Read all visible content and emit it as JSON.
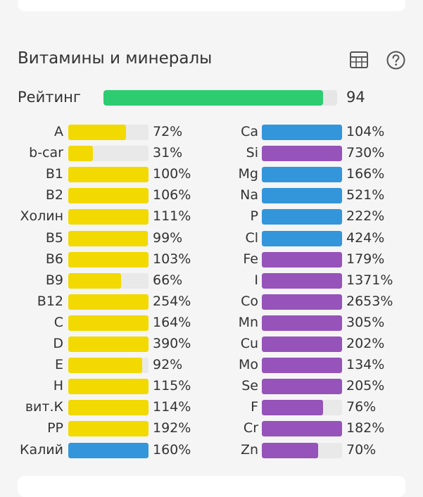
{
  "section": {
    "title": "Витамины и минералы"
  },
  "icons": {
    "table": "table-icon",
    "help": "help-circle-icon"
  },
  "colors": {
    "vitamin": "#f2d900",
    "blue": "#3396db",
    "purple": "#9653b9",
    "rating": "#2ecc71",
    "track": "#e9e9e9"
  },
  "rating": {
    "label": "Рейтинг",
    "value": "94",
    "fraction": 0.94
  },
  "left": [
    {
      "label": "A",
      "value": "72%",
      "fill": 0.72,
      "color": "vitamin"
    },
    {
      "label": "b-car",
      "value": "31%",
      "fill": 0.31,
      "color": "vitamin"
    },
    {
      "label": "B1",
      "value": "100%",
      "fill": 1.0,
      "color": "vitamin"
    },
    {
      "label": "B2",
      "value": "106%",
      "fill": 1.0,
      "color": "vitamin"
    },
    {
      "label": "Холин",
      "value": "111%",
      "fill": 1.0,
      "color": "vitamin"
    },
    {
      "label": "B5",
      "value": "99%",
      "fill": 0.99,
      "color": "vitamin"
    },
    {
      "label": "B6",
      "value": "103%",
      "fill": 1.0,
      "color": "vitamin"
    },
    {
      "label": "B9",
      "value": "66%",
      "fill": 0.66,
      "color": "vitamin"
    },
    {
      "label": "B12",
      "value": "254%",
      "fill": 1.0,
      "color": "vitamin"
    },
    {
      "label": "C",
      "value": "164%",
      "fill": 1.0,
      "color": "vitamin"
    },
    {
      "label": "D",
      "value": "390%",
      "fill": 1.0,
      "color": "vitamin"
    },
    {
      "label": "E",
      "value": "92%",
      "fill": 0.92,
      "color": "vitamin"
    },
    {
      "label": "H",
      "value": "115%",
      "fill": 1.0,
      "color": "vitamin"
    },
    {
      "label": "вит.К",
      "value": "114%",
      "fill": 1.0,
      "color": "vitamin"
    },
    {
      "label": "PP",
      "value": "192%",
      "fill": 1.0,
      "color": "vitamin"
    },
    {
      "label": "Калий",
      "value": "160%",
      "fill": 1.0,
      "color": "blue"
    }
  ],
  "right": [
    {
      "label": "Ca",
      "value": "104%",
      "fill": 1.0,
      "color": "blue"
    },
    {
      "label": "Si",
      "value": "730%",
      "fill": 1.0,
      "color": "purple"
    },
    {
      "label": "Mg",
      "value": "166%",
      "fill": 1.0,
      "color": "blue"
    },
    {
      "label": "Na",
      "value": "521%",
      "fill": 1.0,
      "color": "blue"
    },
    {
      "label": "P",
      "value": "222%",
      "fill": 1.0,
      "color": "blue"
    },
    {
      "label": "Cl",
      "value": "424%",
      "fill": 1.0,
      "color": "blue"
    },
    {
      "label": "Fe",
      "value": "179%",
      "fill": 1.0,
      "color": "purple"
    },
    {
      "label": "I",
      "value": "1371%",
      "fill": 1.0,
      "color": "purple"
    },
    {
      "label": "Co",
      "value": "2653%",
      "fill": 1.0,
      "color": "purple"
    },
    {
      "label": "Mn",
      "value": "305%",
      "fill": 1.0,
      "color": "purple"
    },
    {
      "label": "Cu",
      "value": "202%",
      "fill": 1.0,
      "color": "purple"
    },
    {
      "label": "Mo",
      "value": "134%",
      "fill": 1.0,
      "color": "purple"
    },
    {
      "label": "Se",
      "value": "205%",
      "fill": 1.0,
      "color": "purple"
    },
    {
      "label": "F",
      "value": "76%",
      "fill": 0.76,
      "color": "purple"
    },
    {
      "label": "Cr",
      "value": "182%",
      "fill": 1.0,
      "color": "purple"
    },
    {
      "label": "Zn",
      "value": "70%",
      "fill": 0.7,
      "color": "purple"
    }
  ]
}
